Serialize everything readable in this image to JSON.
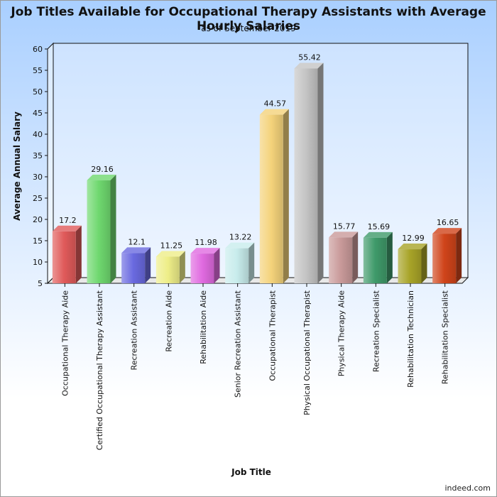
{
  "chart_data": {
    "type": "bar",
    "title": "Job Titles Available for Occupational Therapy Assistants with Average Hourly Salaries",
    "subtitle": "as of September 2019",
    "xlabel": "Job Title",
    "ylabel": "Average Annual Salary",
    "ylim": [
      5,
      60
    ],
    "yticks": [
      5,
      10,
      15,
      20,
      25,
      30,
      35,
      40,
      45,
      50,
      55,
      60
    ],
    "grid": false,
    "categories": [
      "Occupational Therapy Aide",
      "Certified Occupational Therapy Assistant",
      "Recreation Assistant",
      "Recreation Aide",
      "Rehabilitation Aide",
      "Senior Recreation Assistant",
      "Occupational Therapist",
      "Physical Occupational Therapist",
      "Physical Therapy Aide",
      "Recreation Specialist",
      "Rehabilitation Technician",
      "Rehabilitation Specialist"
    ],
    "values": [
      17.2,
      29.16,
      12.1,
      11.25,
      11.98,
      13.22,
      44.57,
      55.42,
      15.77,
      15.69,
      12.99,
      16.65
    ],
    "data_labels": [
      "17.2",
      "29.16",
      "12.1",
      "11.25",
      "11.98",
      "13.22",
      "44.57",
      "55.42",
      "15.77",
      "15.69",
      "12.99",
      "16.65"
    ],
    "colors": [
      "#e05a5a",
      "#6fd86f",
      "#6a6ae0",
      "#eeee88",
      "#e06ae0",
      "#c8ecec",
      "#f4d27a",
      "#c4c4c4",
      "#c99a9a",
      "#3f9a6a",
      "#a8a428",
      "#d0441a"
    ]
  },
  "footer": {
    "source": "indeed.com"
  }
}
